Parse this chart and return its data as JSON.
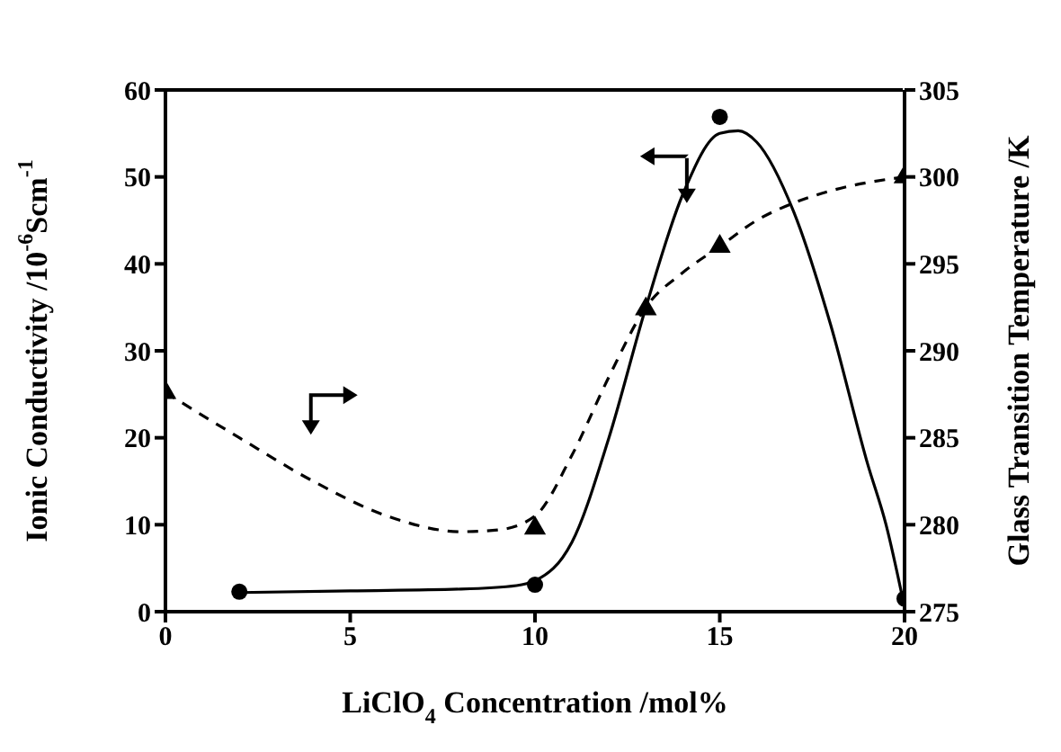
{
  "chart_data": {
    "type": "scatter",
    "xlabel": "LiClO$_{4}$ Concentration /mol%",
    "ylabel": "Ionic Conductivity /10$^{-6}$Scm$^{-1}$",
    "y2label": "Glass Transition Temperature /K",
    "xlim": [
      0,
      20
    ],
    "xticks": [
      0,
      5,
      10,
      15,
      20
    ],
    "ylim": [
      0,
      60
    ],
    "yticks": [
      0,
      10,
      20,
      30,
      40,
      50,
      60
    ],
    "y2lim": [
      275,
      305
    ],
    "y2ticks": [
      275,
      280,
      285,
      290,
      295,
      300,
      305
    ],
    "series": [
      {
        "type": "line",
        "color": "#000000",
        "marker": "none",
        "line_style": "solid",
        "x": [
          2,
          5,
          8,
          9.5,
          10.5,
          11,
          12,
          13,
          14,
          15,
          15.5,
          16,
          17,
          18,
          19,
          19.5,
          20
        ],
        "values": [
          2.2,
          2.4,
          2.6,
          3,
          5,
          8,
          20,
          35,
          48,
          55,
          55.3,
          54,
          46,
          33,
          17,
          10,
          0.5
        ]
      },
      {
        "type": "line",
        "axis": "y2",
        "color": "#000000",
        "marker": "none",
        "line_style": "dashed",
        "x": [
          0,
          2,
          4,
          6,
          8,
          9,
          10,
          11,
          12,
          13,
          14,
          15,
          16,
          17,
          18,
          20
        ],
        "values": [
          287.6,
          285,
          282.5,
          280.5,
          279.6,
          279.7,
          280.5,
          284,
          288.5,
          292.5,
          294.5,
          296,
          297.5,
          298.5,
          299.2,
          300
        ]
      },
      {
        "type": "scatter",
        "color": "#000000",
        "marker": "circle",
        "x": [
          2,
          10,
          15,
          20
        ],
        "values": [
          2.3,
          3.1,
          56.9,
          1.5
        ]
      },
      {
        "type": "scatter",
        "axis": "y2",
        "color": "#000000",
        "marker": "triangle",
        "x": [
          0,
          10,
          13,
          15,
          20
        ],
        "values": [
          287.6,
          279.8,
          292.4,
          296,
          300
        ]
      }
    ]
  }
}
